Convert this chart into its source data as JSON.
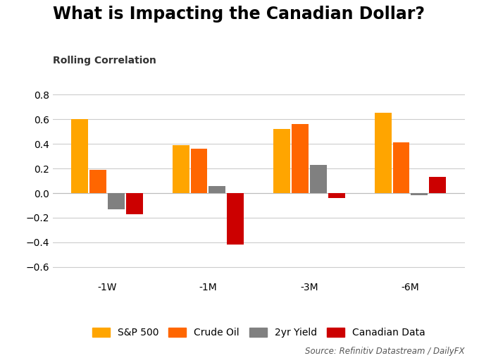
{
  "title": "What is Impacting the Canadian Dollar?",
  "subtitle": "Rolling Correlation",
  "categories": [
    "-1W",
    "-1M",
    "-3M",
    "-6M"
  ],
  "series": {
    "S&P 500": [
      0.6,
      0.39,
      0.52,
      0.65
    ],
    "Crude Oil": [
      0.19,
      0.36,
      0.56,
      0.41
    ],
    "2yr Yield": [
      -0.13,
      0.06,
      0.23,
      -0.02
    ],
    "Canadian Data": [
      -0.17,
      -0.42,
      -0.04,
      0.13
    ]
  },
  "colors": {
    "S&P 500": "#FFA500",
    "Crude Oil": "#FF6600",
    "2yr Yield": "#808080",
    "Canadian Data": "#CC0000"
  },
  "ylim": [
    -0.7,
    0.9
  ],
  "yticks": [
    -0.6,
    -0.4,
    -0.2,
    0.0,
    0.2,
    0.4,
    0.6,
    0.8
  ],
  "source_text": "Source: Refinitiv Datastream / DailyFX",
  "background_color": "#ffffff",
  "grid_color": "#cccccc",
  "title_fontsize": 17,
  "subtitle_fontsize": 10,
  "tick_fontsize": 10,
  "legend_fontsize": 10,
  "source_fontsize": 8.5
}
